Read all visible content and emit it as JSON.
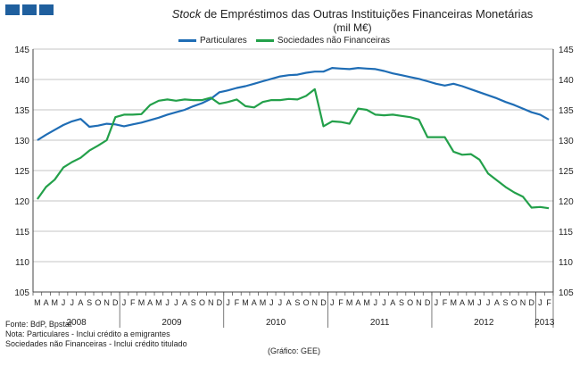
{
  "header": {
    "title_italic": "Stock",
    "title_rest": " de Empréstimos das Outras Instituições  Financeiras Monetárias",
    "subtitle": "(mil M€)"
  },
  "colors": {
    "blue": "#1f6db5",
    "green": "#23a04a",
    "logo": "#1f5f9e",
    "grid": "#999999"
  },
  "notes": {
    "source": "Fonte: BdP, Bpstat",
    "note1": "Nota: Particulares - Inclui crédito a emigrantes",
    "note2": "Sociedades não Financeiras - Inclui crédito titulado",
    "credit": "(Gráfico:  GEE)"
  },
  "chart_data": {
    "type": "line",
    "ylim": [
      105,
      145
    ],
    "yticks": [
      105,
      110,
      115,
      120,
      125,
      130,
      135,
      140,
      145
    ],
    "grid": true,
    "legend_position": "top",
    "month_labels": [
      "M",
      "A",
      "M",
      "J",
      "J",
      "A",
      "S",
      "O",
      "N",
      "D",
      "J",
      "F",
      "M",
      "A",
      "M",
      "J",
      "J",
      "A",
      "S",
      "O",
      "N",
      "D",
      "J",
      "F",
      "M",
      "A",
      "M",
      "J",
      "J",
      "A",
      "S",
      "O",
      "N",
      "D",
      "J",
      "F",
      "M",
      "A",
      "M",
      "J",
      "J",
      "A",
      "S",
      "O",
      "N",
      "D",
      "J",
      "F",
      "M",
      "A",
      "M",
      "J",
      "J",
      "A",
      "S",
      "O",
      "N",
      "D",
      "J",
      "F"
    ],
    "years": [
      {
        "label": "2008",
        "start": 0,
        "end": 9
      },
      {
        "label": "2009",
        "start": 10,
        "end": 21
      },
      {
        "label": "2010",
        "start": 22,
        "end": 33
      },
      {
        "label": "2011",
        "start": 34,
        "end": 45
      },
      {
        "label": "2012",
        "start": 46,
        "end": 57
      },
      {
        "label": "2013",
        "start": 58,
        "end": 59
      }
    ],
    "series": [
      {
        "name": "Particulares",
        "color": "#1f6db5",
        "values": [
          130.0,
          130.9,
          131.7,
          132.5,
          133.1,
          133.5,
          132.2,
          132.4,
          132.7,
          132.6,
          132.3,
          132.6,
          132.9,
          133.3,
          133.7,
          134.2,
          134.6,
          135.0,
          135.6,
          136.1,
          136.8,
          137.9,
          138.2,
          138.6,
          138.9,
          139.3,
          139.7,
          140.1,
          140.5,
          140.7,
          140.8,
          141.1,
          141.3,
          141.3,
          141.9,
          141.8,
          141.7,
          141.9,
          141.8,
          141.7,
          141.4,
          141.0,
          140.7,
          140.4,
          140.1,
          139.7,
          139.3,
          139.0,
          139.3,
          138.9,
          138.4,
          137.9,
          137.4,
          136.9,
          136.3,
          135.8,
          135.2,
          134.6,
          134.2,
          133.4
        ]
      },
      {
        "name": "Sociedades não Financeiras",
        "color": "#23a04a",
        "values": [
          120.3,
          122.3,
          123.5,
          125.5,
          126.4,
          127.1,
          128.3,
          129.1,
          130.0,
          133.8,
          134.2,
          134.2,
          134.3,
          135.8,
          136.5,
          136.7,
          136.5,
          136.7,
          136.6,
          136.6,
          137.0,
          136.0,
          136.3,
          136.7,
          135.6,
          135.4,
          136.3,
          136.6,
          136.6,
          136.8,
          136.7,
          137.3,
          138.4,
          132.3,
          133.1,
          133.0,
          132.7,
          135.2,
          135.0,
          134.2,
          134.1,
          134.2,
          134.0,
          133.8,
          133.4,
          130.5,
          130.5,
          130.5,
          128.1,
          127.6,
          127.7,
          126.8,
          124.5,
          123.4,
          122.3,
          121.4,
          120.7,
          118.9,
          119.0,
          118.8
        ]
      }
    ]
  }
}
